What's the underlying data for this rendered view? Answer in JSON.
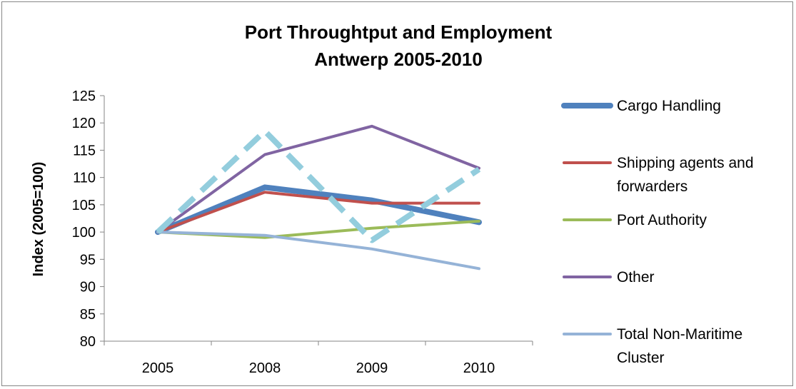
{
  "chart_data": {
    "type": "line",
    "title": [
      "Port Throughtput and Employment",
      "Antwerp 2005-2010"
    ],
    "xlabel": "",
    "ylabel": "Index (2005=100)",
    "categories": [
      "2005",
      "2008",
      "2009",
      "2010"
    ],
    "ylim": [
      80,
      125
    ],
    "yticks": [
      80,
      85,
      90,
      95,
      100,
      105,
      110,
      115,
      120,
      125
    ],
    "grid": false,
    "legend_position": "right",
    "series": [
      {
        "name": "Cargo Handling",
        "legend_lines": [
          "Cargo Handling"
        ],
        "values": [
          100,
          108.2,
          105.8,
          101.8
        ],
        "color": "#4F81BD",
        "width": 8,
        "dash": ""
      },
      {
        "name": "Shipping agents and forwarders",
        "legend_lines": [
          "Shipping agents and",
          "forwarders"
        ],
        "values": [
          100,
          107.3,
          105.3,
          105.3
        ],
        "color": "#C0504D",
        "width": 4,
        "dash": ""
      },
      {
        "name": "Port Authority",
        "legend_lines": [
          "Port Authority"
        ],
        "values": [
          100,
          99.0,
          100.7,
          102.0
        ],
        "color": "#9BBB59",
        "width": 4,
        "dash": ""
      },
      {
        "name": "Other",
        "legend_lines": [
          "Other"
        ],
        "values": [
          100,
          114.2,
          119.4,
          111.7
        ],
        "color": "#8064A2",
        "width": 4,
        "dash": ""
      },
      {
        "name": "Total Non-Maritime Cluster",
        "legend_lines": [
          "Total Non-Maritime",
          "Cluster"
        ],
        "values": [
          100,
          99.4,
          96.9,
          93.3
        ],
        "color": "#95B3D7",
        "width": 4,
        "dash": ""
      },
      {
        "name": "",
        "legend_lines": [],
        "values": [
          100,
          118.5,
          98.5,
          111.5
        ],
        "color": "#93CDDD",
        "width": 8,
        "dash": "28,14"
      }
    ]
  }
}
